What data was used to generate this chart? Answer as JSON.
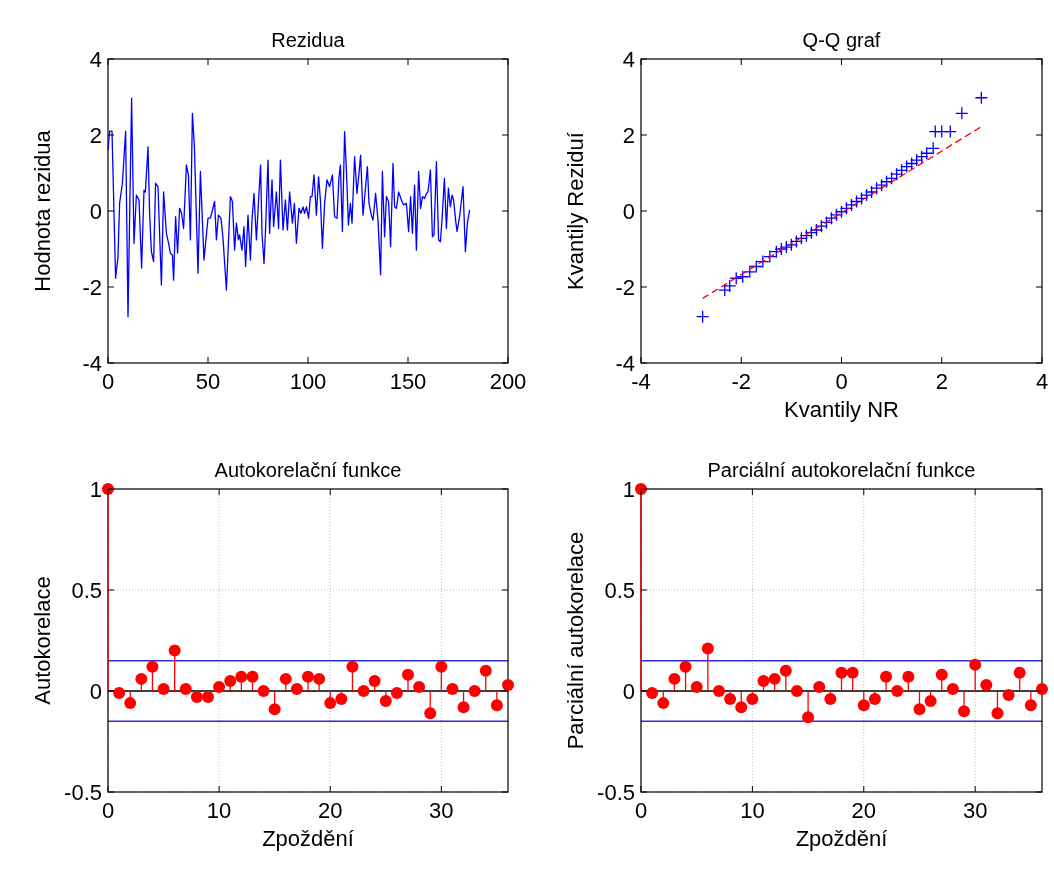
{
  "chart_data": [
    {
      "type": "line",
      "title": "Rezidua",
      "ylabel": "Hodnota rezidua",
      "xlim": [
        0,
        200
      ],
      "xticks": [
        0,
        50,
        100,
        150,
        200
      ],
      "ylim": [
        -4,
        4
      ],
      "yticks": [
        -4,
        -2,
        0,
        2,
        4
      ],
      "grid": false,
      "series": [
        {
          "color": "#0000ff",
          "x": [
            0,
            0.8,
            2,
            3.8,
            5,
            5.8,
            7.2,
            8.8,
            10,
            11.8,
            13,
            14.2,
            15.5,
            16.8,
            18,
            18.7,
            20,
            20.8,
            21.7,
            22.8,
            23.8,
            25,
            26.7,
            27.8,
            29.2,
            30.3,
            31.2,
            32.2,
            32.8,
            33.8,
            34.8,
            35.8,
            36.8,
            37.8,
            39.2,
            40.2,
            41.2,
            42.2,
            43.2,
            45,
            46.2,
            48,
            50,
            51.2,
            53.3,
            54.2,
            55.2,
            56.5,
            57.5,
            59.2,
            61.2,
            62.2,
            63.3,
            64.2,
            65.2,
            65.8,
            67,
            68,
            68.8,
            70,
            71.2,
            72,
            73,
            74.2,
            75.3,
            76.3,
            77,
            78,
            78.7,
            80,
            80.8,
            82,
            82.8,
            84.2,
            85.3,
            86.2,
            87.5,
            88.7,
            89.7,
            90.8,
            92.2,
            93.2,
            94.2,
            95.5,
            96.5,
            97.5,
            98.3,
            99.2,
            100.3,
            101.2,
            102,
            103,
            104.2,
            105.3,
            106.2,
            107.2,
            108.3,
            109.5,
            110.8,
            112.2,
            113.3,
            114.5,
            115.5,
            116.2,
            117.2,
            118.3,
            119.2,
            120.2,
            121.2,
            122,
            123.3,
            124.5,
            125.5,
            126.3,
            127.5,
            128.5,
            129.7,
            130.5,
            131.7,
            132.5,
            133.8,
            135,
            136.3,
            137.2,
            138.3,
            139.2,
            140.3,
            141.3,
            142.5,
            143.3,
            144.2,
            145.3,
            146.7,
            147.8,
            149.2,
            150.3,
            151.3,
            152.2,
            153.3,
            154.2,
            155.3,
            156.3,
            157.2,
            158.3,
            159.2,
            160,
            161.2,
            162.2,
            163,
            164.2,
            165.3,
            166.2,
            167,
            168.2,
            169.2,
            170.2,
            171.2,
            172,
            172.8,
            173.8,
            174.5,
            175.8,
            177.5,
            178.7,
            179.7,
            180.8
          ],
          "values": [
            1.6,
            2.1,
            2.1,
            -1.77,
            -1.2,
            0.2,
            0.73,
            2.1,
            -2.78,
            2.97,
            -0.85,
            0.42,
            0.29,
            -1.5,
            0.55,
            0.5,
            1.69,
            -0.06,
            -1.07,
            -1.33,
            0.73,
            0.64,
            -1.95,
            0.5,
            -0.59,
            -0.85,
            -1.11,
            -1.16,
            -1.82,
            -0.15,
            -1.11,
            0.07,
            -0.06,
            -0.46,
            1.21,
            0.95,
            -0.76,
            2.57,
            1.69,
            -1.64,
            1.04,
            -1.29,
            -0.19,
            -0.19,
            0.25,
            -0.76,
            -0.11,
            -0.19,
            -0.72,
            -2.08,
            0.38,
            0.25,
            -1.03,
            -0.32,
            -0.76,
            -0.63,
            -1.03,
            -0.41,
            -1.46,
            -0.11,
            -1.29,
            -0.24,
            0.46,
            -0.76,
            0.29,
            1.21,
            -0.59,
            -1.38,
            -0.59,
            1.34,
            -0.59,
            0.82,
            -0.41,
            0.5,
            -0.46,
            1.34,
            -0.5,
            0.29,
            -0.5,
            0.5,
            -0.32,
            0.2,
            -0.85,
            0.07,
            -0.06,
            0.11,
            -0.06,
            0.11,
            -0.19,
            0.38,
            0.38,
            0.95,
            -0.11,
            0.9,
            0.29,
            -0.98,
            0.2,
            0.82,
            0.64,
            0.95,
            -0.15,
            -0.19,
            0.9,
            1.21,
            -0.54,
            2.09,
            1.08,
            -0.37,
            0.2,
            -0.32,
            1.43,
            0.46,
            0.99,
            1.47,
            -0.11,
            0.46,
            1.17,
            0.2,
            -0.11,
            -0.24,
            0.46,
            -0.24,
            -1.68,
            1.04,
            -0.68,
            0.38,
            0.25,
            -0.94,
            1.25,
            0.11,
            0.07,
            0.5,
            0.29,
            0.16,
            0.2,
            -0.54,
            0.38,
            -0.59,
            0.68,
            -1.03,
            1.04,
            0.07,
            0.38,
            0.33,
            0.46,
            0.5,
            1.08,
            -0.68,
            -0.63,
            1.3,
            -0.76,
            -0.81,
            -0.24,
            0.86,
            -0.46,
            0.6,
            0.11,
            0.42,
            0.29,
            -0.24,
            -0.54,
            -0.15,
            0.64,
            -1.07,
            -0.32,
            0.03
          ]
        }
      ]
    },
    {
      "type": "scatter",
      "title": "Q-Q graf",
      "xlabel": "Kvantily NR",
      "ylabel": "Kvantily Reziduí",
      "xlim": [
        -4,
        4
      ],
      "xticks": [
        -4,
        -2,
        0,
        2,
        4
      ],
      "ylim": [
        -4,
        4
      ],
      "yticks": [
        -4,
        -2,
        0,
        2,
        4
      ],
      "grid": false,
      "series": [
        {
          "color": "#0000ff",
          "marker": "cross",
          "x": [
            -2.77,
            -2.33,
            -2.23,
            -2.1,
            -1.97,
            -1.83,
            -1.7,
            -1.57,
            -1.43,
            -1.3,
            -1.2,
            -1.1,
            -1.0,
            -0.9,
            -0.8,
            -0.7,
            -0.6,
            -0.5,
            -0.4,
            -0.3,
            -0.2,
            -0.1,
            0,
            0.1,
            0.2,
            0.3,
            0.4,
            0.5,
            0.6,
            0.7,
            0.8,
            0.9,
            1.0,
            1.1,
            1.2,
            1.3,
            1.4,
            1.5,
            1.6,
            1.7,
            1.83,
            1.87,
            2.0,
            2.17,
            2.4,
            2.79
          ],
          "values": [
            -2.78,
            -2.08,
            -1.97,
            -1.77,
            -1.73,
            -1.6,
            -1.46,
            -1.33,
            -1.2,
            -1.07,
            -1.0,
            -0.95,
            -0.89,
            -0.8,
            -0.72,
            -0.65,
            -0.57,
            -0.5,
            -0.4,
            -0.3,
            -0.19,
            -0.1,
            -0.02,
            0.07,
            0.16,
            0.25,
            0.33,
            0.42,
            0.5,
            0.6,
            0.68,
            0.77,
            0.86,
            0.97,
            1.07,
            1.17,
            1.25,
            1.34,
            1.43,
            1.52,
            1.65,
            2.09,
            2.09,
            2.09,
            2.57,
            2.98
          ]
        },
        {
          "type": "line",
          "color": "#ff0000",
          "line_style": "dashed",
          "x": [
            -2.77,
            2.79
          ],
          "values": [
            -2.3,
            2.22
          ]
        }
      ]
    },
    {
      "type": "lollipop",
      "title": "Autokorelační funkce",
      "xlabel": "Zpoždění",
      "ylabel": "Autokorelace",
      "xlim": [
        0,
        36
      ],
      "xticks": [
        0,
        10,
        20,
        30
      ],
      "ylim": [
        -0.5,
        1
      ],
      "yticks": [
        -0.5,
        0,
        0.5,
        1
      ],
      "grid": true,
      "marker": "circle",
      "x": [
        0,
        1,
        2,
        3,
        4,
        5,
        6,
        7,
        8,
        9,
        10,
        11,
        12,
        13,
        14,
        15,
        16,
        17,
        18,
        19,
        20,
        21,
        22,
        23,
        24,
        25,
        26,
        27,
        28,
        29,
        30,
        31,
        32,
        33,
        34,
        35,
        36
      ],
      "series": [
        {
          "color": "#ff0000",
          "values": [
            1,
            -0.01,
            -0.06,
            0.06,
            0.12,
            0.01,
            0.2,
            0.01,
            -0.03,
            -0.03,
            0.02,
            0.05,
            0.07,
            0.07,
            0,
            -0.09,
            0.06,
            0.01,
            0.07,
            0.06,
            -0.06,
            -0.04,
            0.12,
            0,
            0.05,
            -0.05,
            -0.01,
            0.08,
            0.02,
            -0.11,
            0.12,
            0.01,
            -0.08,
            0,
            0.1,
            -0.07,
            0.03
          ]
        }
      ],
      "ref_lines": [
        {
          "axis": "y",
          "value": 0.15,
          "color": "#2f2fd0"
        },
        {
          "axis": "y",
          "value": -0.15,
          "color": "#2f2fd0"
        },
        {
          "axis": "y",
          "value": 0,
          "color": "#000000"
        }
      ]
    },
    {
      "type": "lollipop",
      "title": "Parciální autokorelační funkce",
      "xlabel": "Zpoždění",
      "ylabel": "Parciální autokorelace",
      "xlim": [
        0,
        36
      ],
      "xticks": [
        0,
        10,
        20,
        30
      ],
      "ylim": [
        -0.5,
        1
      ],
      "yticks": [
        -0.5,
        0,
        0.5,
        1
      ],
      "grid": true,
      "marker": "circle",
      "x": [
        0,
        1,
        2,
        3,
        4,
        5,
        6,
        7,
        8,
        9,
        10,
        11,
        12,
        13,
        14,
        15,
        16,
        17,
        18,
        19,
        20,
        21,
        22,
        23,
        24,
        25,
        26,
        27,
        28,
        29,
        30,
        31,
        32,
        33,
        34,
        35,
        36
      ],
      "series": [
        {
          "color": "#ff0000",
          "values": [
            1,
            -0.01,
            -0.06,
            0.06,
            0.12,
            0.02,
            0.21,
            0,
            -0.04,
            -0.08,
            -0.04,
            0.05,
            0.06,
            0.1,
            0,
            -0.13,
            0.02,
            -0.04,
            0.09,
            0.09,
            -0.07,
            -0.04,
            0.07,
            0,
            0.07,
            -0.09,
            -0.05,
            0.08,
            0.01,
            -0.1,
            0.13,
            0.03,
            -0.11,
            -0.02,
            0.09,
            -0.07,
            0.01
          ]
        }
      ],
      "ref_lines": [
        {
          "axis": "y",
          "value": 0.15,
          "color": "#2f2fd0"
        },
        {
          "axis": "y",
          "value": -0.15,
          "color": "#2f2fd0"
        },
        {
          "axis": "y",
          "value": 0,
          "color": "#000000"
        }
      ]
    }
  ]
}
